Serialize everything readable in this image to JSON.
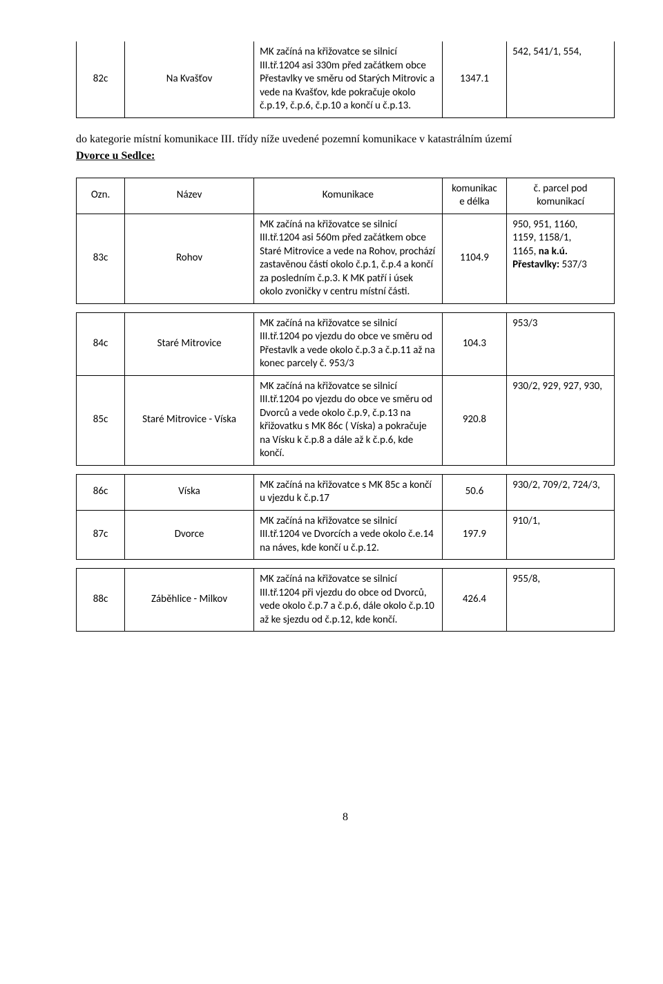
{
  "table1": {
    "rows": [
      {
        "ozn": "82c",
        "nazev": "Na Kvašťov",
        "desc": "MK začíná na křižovatce se silnicí III.tř.1204 asi 330m před začátkem obce Přestavlky ve směru od Starých Mitrovic a vede na Kvašťov, kde pokračuje okolo č.p.19, č.p.6, č.p.10 a končí u č.p.13.",
        "len": "1347.1",
        "parcel": "542, 541/1, 554,"
      }
    ]
  },
  "between": {
    "text": "do kategorie místní komunikace III. třídy níže uvedené pozemní komunikace v katastrálním území",
    "heading": "Dvorce u Sedlce:"
  },
  "table2": {
    "head": {
      "ozn": "Ozn.",
      "nazev": "Název",
      "desc": "Komunikace",
      "len": "komunikac\ne délka",
      "parcel": "č. parcel pod\nkomunikací"
    },
    "rows": [
      {
        "ozn": "83c",
        "nazev": "Rohov",
        "desc": "MK začíná na křižovatce se silnicí III.tř.1204 asi 560m před začátkem obce Staré Mitrovice a vede na Rohov, prochází zastavěnou částí okolo č.p.1, č.p.4 a končí za posledním č.p.3. K MK patří i úsek okolo zvoničky v centru místní části.",
        "len": "1104.9",
        "parcel_line1": "950, 951, 1160,",
        "parcel_line2": "1159, 1158/1,",
        "parcel_line3a": "1165,   ",
        "parcel_line3b": "na k.ú. Přestavlky:",
        "parcel_line3c": " 537/3"
      }
    ]
  },
  "table3": {
    "rows": [
      {
        "ozn": "84c",
        "nazev": "Staré Mitrovice",
        "desc": "MK začíná na křižovatce se silnicí III.tř.1204 po vjezdu do obce ve směru od Přestavlk a vede okolo č.p.3 a č.p.11 až na konec parcely č. 953/3",
        "len": "104.3",
        "parcel": "953/3"
      },
      {
        "ozn": "85c",
        "nazev": "Staré Mitrovice - Víska",
        "desc": "MK začíná na křižovatce se silnicí III.tř.1204 po vjezdu do obce ve směru od Dvorců a vede okolo č.p.9, č.p.13 na křižovatku s MK 86c ( Víska) a pokračuje na Vísku k č.p.8 a dále až k č.p.6, kde končí.",
        "len": "920.8",
        "parcel": "930/2, 929, 927, 930,"
      }
    ]
  },
  "table4": {
    "rows": [
      {
        "ozn": "86c",
        "nazev": "Víska",
        "desc": "MK začíná na křižovatce s MK 85c a končí u vjezdu k č.p.17",
        "len": "50.6",
        "parcel": "930/2, 709/2, 724/3,"
      },
      {
        "ozn": "87c",
        "nazev": "Dvorce",
        "desc": "MK začíná na křižovatce se silnicí III.tř.1204 ve Dvorcích a vede okolo č.e.14 na náves, kde končí u č.p.12.",
        "len": "197.9",
        "parcel": "910/1,"
      }
    ]
  },
  "table5": {
    "rows": [
      {
        "ozn": "88c",
        "nazev": "Záběhlice - Milkov",
        "desc": "MK začíná na křižovatce se silnicí III.tř.1204 při vjezdu do obce od Dvorců, vede okolo č.p.7 a č.p.6, dále okolo č.p.10 až ke sjezdu od č.p.12, kde končí.",
        "len": "426.4",
        "parcel": "955/8,"
      }
    ]
  },
  "pageNumber": "8"
}
